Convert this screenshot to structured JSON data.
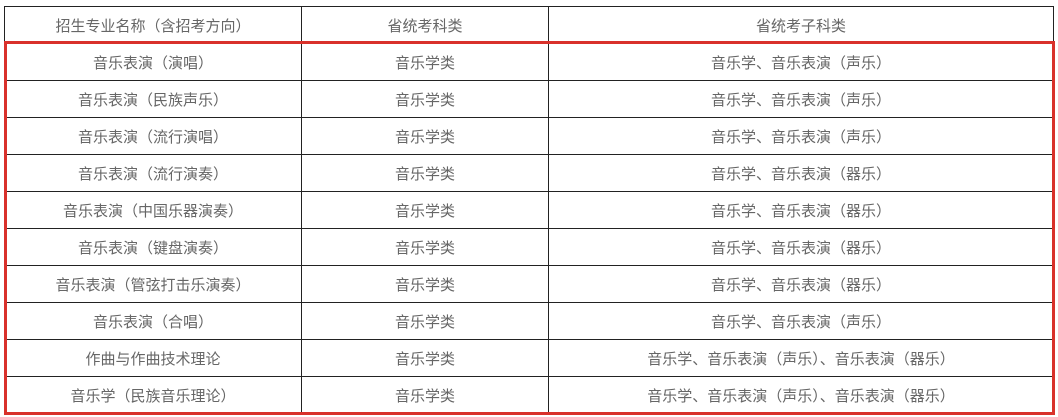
{
  "table": {
    "headers": [
      "招生专业名称（含招考方向）",
      "省统考科类",
      "省统考子科类"
    ],
    "rows": [
      [
        "音乐表演（演唱）",
        "音乐学类",
        "音乐学、音乐表演（声乐）"
      ],
      [
        "音乐表演（民族声乐）",
        "音乐学类",
        "音乐学、音乐表演（声乐）"
      ],
      [
        "音乐表演（流行演唱）",
        "音乐学类",
        "音乐学、音乐表演（声乐）"
      ],
      [
        "音乐表演（流行演奏）",
        "音乐学类",
        "音乐学、音乐表演（器乐）"
      ],
      [
        "音乐表演（中国乐器演奏）",
        "音乐学类",
        "音乐学、音乐表演（器乐）"
      ],
      [
        "音乐表演（键盘演奏）",
        "音乐学类",
        "音乐学、音乐表演（器乐）"
      ],
      [
        "音乐表演（管弦打击乐演奏）",
        "音乐学类",
        "音乐学、音乐表演（器乐）"
      ],
      [
        "音乐表演（合唱）",
        "音乐学类",
        "音乐学、音乐表演（声乐）"
      ],
      [
        "作曲与作曲技术理论",
        "音乐学类",
        "音乐学、音乐表演（声乐）、音乐表演（器乐）"
      ],
      [
        "音乐学（民族音乐理论）",
        "音乐学类",
        "音乐学、音乐表演（声乐）、音乐表演（器乐）"
      ]
    ]
  },
  "colors": {
    "highlight": "#d9312b",
    "text": "#666666"
  }
}
